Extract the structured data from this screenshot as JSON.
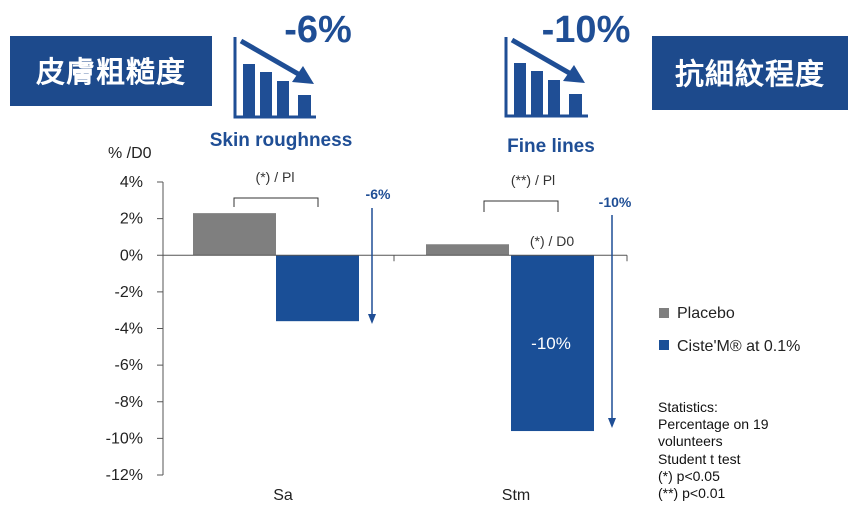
{
  "header": {
    "left_box": "皮膚粗糙度",
    "right_box": "抗細紋程度"
  },
  "highlights": [
    {
      "value": "-6%",
      "label": "Skin roughness",
      "icon": "bar-chart-decline-icon"
    },
    {
      "value": "-10%",
      "label": "Fine lines",
      "icon": "bar-chart-decline-icon"
    }
  ],
  "colors": {
    "placebo": "#7f7f7f",
    "ciste": "#1a4f97",
    "box": "#1d4a8c",
    "accent_text": "#1f4e95"
  },
  "chart_data": {
    "type": "bar",
    "ylabel": "% /D0",
    "categories": [
      "Sa",
      "Stm"
    ],
    "series": [
      {
        "name": "Placebo",
        "values": [
          2.3,
          0.6
        ]
      },
      {
        "name": "Ciste'M® at 0.1%",
        "values": [
          -3.6,
          -9.6
        ]
      }
    ],
    "ylim": [
      -12,
      4
    ],
    "yticks": [
      4,
      2,
      0,
      -2,
      -4,
      -6,
      -8,
      -10,
      -12
    ],
    "ytick_labels": [
      "4%",
      "2%",
      "0%",
      "-2%",
      "-4%",
      "-6%",
      "-8%",
      "-10%",
      "-12%"
    ],
    "grid": false,
    "legend": "right",
    "annotations": {
      "sa_significance": "(*) / Pl",
      "sa_change": "-6%",
      "stm_significance": "(**) / Pl",
      "stm_change": "-10%",
      "stm_vs_d0": "(*) / D0",
      "stm_bar_label": "-10%"
    }
  },
  "statistics": [
    "Statistics:",
    "Percentage on 19",
    "volunteers",
    "Student t test",
    "(*) p<0.05",
    "(**) p<0.01"
  ]
}
